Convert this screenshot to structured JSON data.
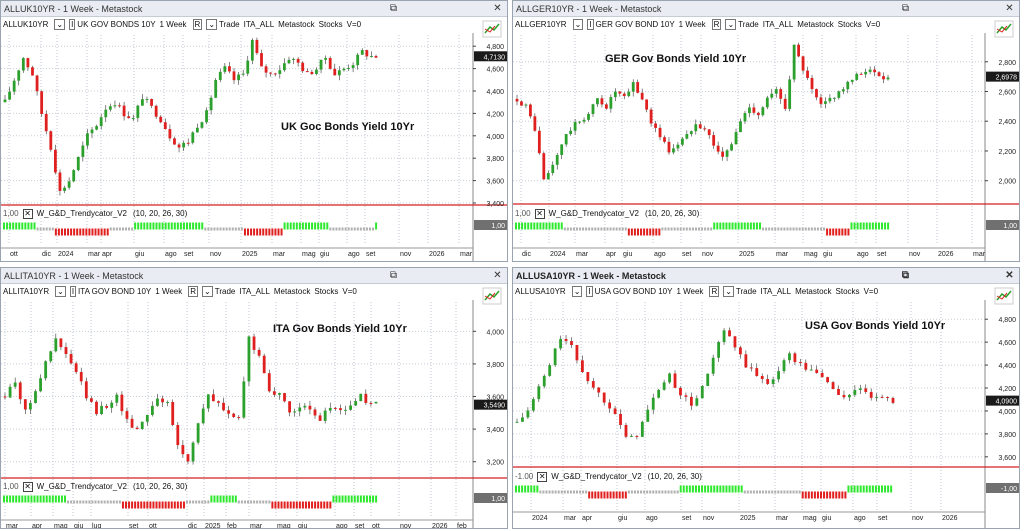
{
  "panes": [
    {
      "id": "uk",
      "window_title": "ALLUK10YR - 1 Week - Metastock",
      "title_bold": false,
      "symbol": "ALLUK10YR",
      "dropdown_i": "I",
      "name": "UK GOV BONDS 10Y",
      "period": "1 Week",
      "dropdown_r": "R",
      "trade": "Trade",
      "list": "ITA_ALL",
      "platform": "Metastock",
      "stocks": "Stocks",
      "volume": "V=0",
      "annotation": "UK Goc Bonds Yield 10Yr",
      "price_label": "4,7130",
      "y_ticks": [
        "4,800",
        "4,600",
        "4,400",
        "4,200",
        "4,000",
        "3,800",
        "3,600",
        "3,400"
      ],
      "indicator_value": "1,00",
      "indicator_name": "W_G&D_Trendycator_V2",
      "indicator_params": "(10, 20, 26, 30)",
      "indicator_tag": "1,00",
      "x_labels": [
        "ott",
        "dic",
        "2024",
        "mar",
        "apr",
        "giu",
        "ago",
        "set",
        "nov",
        "2025",
        "mar",
        "mag",
        "giu",
        "ago",
        "set",
        "nov",
        "2026",
        "mar"
      ],
      "up_color": "#2ca02c",
      "down_color": "#e0201f"
    },
    {
      "id": "ger",
      "window_title": "ALLGER10YR - 1 Week - Metastock",
      "title_bold": false,
      "symbol": "ALLGER10YR",
      "dropdown_i": "I",
      "name": "GER GOV BOND 10Y",
      "period": "1 Week",
      "dropdown_r": "R",
      "trade": "Trade",
      "list": "ITA_ALL",
      "platform": "Metastock",
      "stocks": "Stocks",
      "volume": "V=0",
      "annotation": "GER Gov Bonds Yield 10Yr",
      "price_label": "2,6978",
      "y_ticks": [
        "2,800",
        "2,600",
        "2,400",
        "2,200",
        "2,000"
      ],
      "indicator_value": "1,00",
      "indicator_name": "W_G&D_Trendycator_V2",
      "indicator_params": "(10, 20, 26, 30)",
      "indicator_tag": "1,00",
      "x_labels": [
        "dic",
        "2024",
        "mar",
        "apr",
        "giu",
        "ago",
        "set",
        "nov",
        "2025",
        "mar",
        "mag",
        "giu",
        "ago",
        "set",
        "nov",
        "2026",
        "mar"
      ],
      "up_color": "#2ca02c",
      "down_color": "#e0201f"
    },
    {
      "id": "ita",
      "window_title": "ALLITA10YR - 1 Week - Metastock",
      "title_bold": false,
      "symbol": "ALLITA10YR",
      "dropdown_i": "I",
      "name": "ITA GOV BOND 10Y",
      "period": "1 Week",
      "dropdown_r": "R",
      "trade": "Trade",
      "list": "ITA_ALL",
      "platform": "Metastock",
      "stocks": "Stocks",
      "volume": "V=0",
      "annotation": "ITA Gov Bonds Yield 10Yr",
      "price_label": "3,5490",
      "y_ticks": [
        "4,000",
        "3,800",
        "3,600",
        "3,400",
        "3,200"
      ],
      "indicator_value": "1,00",
      "indicator_name": "W_G&D_Trendycator_V2",
      "indicator_params": "(10, 20, 26, 30)",
      "indicator_tag": "1,00",
      "x_labels": [
        "mar",
        "apr",
        "mag",
        "giu",
        "lug",
        "set",
        "ott",
        "dic",
        "2025",
        "feb",
        "mar",
        "mag",
        "giu",
        "ago",
        "set",
        "ott",
        "nov",
        "2026",
        "feb"
      ],
      "up_color": "#2ca02c",
      "down_color": "#e0201f"
    },
    {
      "id": "usa",
      "window_title": "ALLUSA10YR - 1 Week - Metastock",
      "title_bold": true,
      "symbol": "ALLUSA10YR",
      "dropdown_i": "I",
      "name": "USA GOV BOND 10Y",
      "period": "1 Week",
      "dropdown_r": "R",
      "trade": "Trade",
      "list": "ITA_ALL",
      "platform": "Metastock",
      "stocks": "Stocks",
      "volume": "V=0",
      "annotation": "USA Gov Bonds Yield 10Yr",
      "price_label": "4,0900",
      "y_ticks": [
        "4,800",
        "4,600",
        "4,400",
        "4,200",
        "4,000",
        "3,800",
        "3,600"
      ],
      "indicator_value": "-1.00",
      "indicator_name": "W_G&D_Trendycator_V2",
      "indicator_params": "(10, 20, 26, 30)",
      "indicator_tag": "-1,00",
      "x_labels": [
        "2024",
        "mar",
        "apr",
        "giu",
        "ago",
        "set",
        "nov",
        "2025",
        "mar",
        "mag",
        "giu",
        "ago",
        "set",
        "nov",
        "2026"
      ],
      "up_color": "#2ca02c",
      "down_color": "#e0201f"
    }
  ]
}
